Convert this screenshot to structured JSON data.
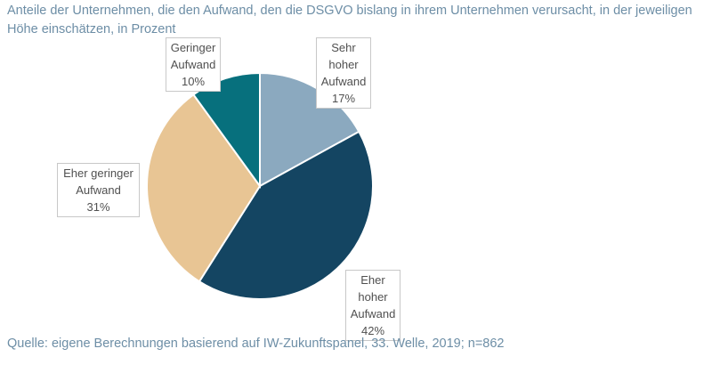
{
  "chart_data": {
    "type": "pie",
    "title": "Anteile der Unternehmen, die den Aufwand, den die DSGVO bislang in ihrem Unternehmen verursacht, in der jeweiligen Höhe einschätzen, in Prozent",
    "source": "Quelle: eigene Berechnungen basierend auf IW-Zukunftspanel, 33. Welle, 2019; n=862",
    "slices": [
      {
        "label_line1": "Sehr hoher",
        "label_line2": "Aufwand",
        "value": 17,
        "value_label": "17%",
        "color": "#8ba9bf"
      },
      {
        "label_line1": "Eher hoher",
        "label_line2": "Aufwand",
        "value": 42,
        "value_label": "42%",
        "color": "#144562"
      },
      {
        "label_line1": "Eher geringer",
        "label_line2": "Aufwand",
        "value": 31,
        "value_label": "31%",
        "color": "#e8c594"
      },
      {
        "label_line1": "Geringer",
        "label_line2": "Aufwand",
        "value": 10,
        "value_label": "10%",
        "color": "#07707d"
      }
    ]
  }
}
